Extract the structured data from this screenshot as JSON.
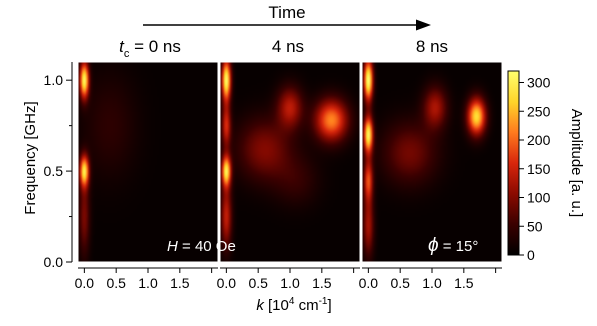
{
  "time_label": "Time",
  "panel_titles": [
    {
      "var": "t",
      "sub": "c",
      "rest": " = 0 ns"
    },
    {
      "var": "",
      "sub": "",
      "rest": "4 ns"
    },
    {
      "var": "",
      "sub": "",
      "rest": "8 ns"
    }
  ],
  "annotations": {
    "field": {
      "var": "H",
      "rest": " = 40 Oe"
    },
    "angle": {
      "var": "ϕ",
      "rest": " = 15°"
    }
  },
  "colors": {
    "colormap": [
      "#000000",
      "#3a0000",
      "#8b0a00",
      "#d8260c",
      "#ff7a1e",
      "#ffd52a",
      "#ffff6e"
    ]
  },
  "chart_data": {
    "type": "heatmap",
    "panels": [
      {
        "title": "tc = 0 ns",
        "hotspots": [
          {
            "k": 0.0,
            "f": 1.0,
            "amp": 300,
            "sk": 0.05,
            "sf": 0.07
          },
          {
            "k": 0.0,
            "f": 0.5,
            "amp": 270,
            "sk": 0.05,
            "sf": 0.06
          },
          {
            "k": 0.0,
            "f": 0.25,
            "amp": 90,
            "sk": 0.06,
            "sf": 0.15
          },
          {
            "k": 0.4,
            "f": 0.75,
            "amp": 35,
            "sk": 0.3,
            "sf": 0.2
          }
        ]
      },
      {
        "title": "4 ns",
        "hotspots": [
          {
            "k": 0.0,
            "f": 1.0,
            "amp": 310,
            "sk": 0.05,
            "sf": 0.08
          },
          {
            "k": 0.0,
            "f": 0.5,
            "amp": 280,
            "sk": 0.05,
            "sf": 0.06
          },
          {
            "k": 0.0,
            "f": 0.75,
            "amp": 150,
            "sk": 0.05,
            "sf": 0.08
          },
          {
            "k": 0.0,
            "f": 0.25,
            "amp": 140,
            "sk": 0.06,
            "sf": 0.12
          },
          {
            "k": 1.65,
            "f": 0.78,
            "amp": 215,
            "sk": 0.18,
            "sf": 0.08
          },
          {
            "k": 1.0,
            "f": 0.85,
            "amp": 130,
            "sk": 0.14,
            "sf": 0.08
          },
          {
            "k": 0.6,
            "f": 0.62,
            "amp": 95,
            "sk": 0.3,
            "sf": 0.12
          },
          {
            "k": 1.1,
            "f": 0.45,
            "amp": 40,
            "sk": 0.25,
            "sf": 0.1
          }
        ]
      },
      {
        "title": "8 ns",
        "hotspots": [
          {
            "k": 0.0,
            "f": 1.0,
            "amp": 320,
            "sk": 0.05,
            "sf": 0.08
          },
          {
            "k": 0.0,
            "f": 0.7,
            "amp": 300,
            "sk": 0.05,
            "sf": 0.07
          },
          {
            "k": 0.0,
            "f": 0.45,
            "amp": 170,
            "sk": 0.05,
            "sf": 0.08
          },
          {
            "k": 0.0,
            "f": 0.2,
            "amp": 120,
            "sk": 0.06,
            "sf": 0.12
          },
          {
            "k": 1.7,
            "f": 0.8,
            "amp": 275,
            "sk": 0.1,
            "sf": 0.07
          },
          {
            "k": 1.05,
            "f": 0.85,
            "amp": 120,
            "sk": 0.13,
            "sf": 0.08
          },
          {
            "k": 0.65,
            "f": 0.6,
            "amp": 85,
            "sk": 0.3,
            "sf": 0.12
          }
        ]
      }
    ],
    "xlabel": {
      "var": "k",
      "text": " [10",
      "sup": "4",
      "unit": " cm",
      "unit_sup": "-1",
      "close": "]"
    },
    "ylabel": "Frequency [GHz]",
    "xlim": [
      -0.1,
      2.1
    ],
    "ylim": [
      0.0,
      1.1
    ],
    "x_ticks": [
      "0.0",
      "0.5",
      "1.0",
      "1.5"
    ],
    "x_tick_values": [
      0.0,
      0.5,
      1.0,
      1.5
    ],
    "x_minor_tick_values": [
      2.0
    ],
    "y_ticks": [
      "0.0",
      "0.5",
      "1.0"
    ],
    "y_tick_values": [
      0.0,
      0.5,
      1.0
    ],
    "colorbar": {
      "label": "Amplitude [a. u.]",
      "range": [
        0,
        320
      ],
      "ticks": [
        "0",
        "50",
        "100",
        "150",
        "200",
        "250",
        "300"
      ],
      "tick_values": [
        0,
        50,
        100,
        150,
        200,
        250,
        300
      ]
    }
  }
}
